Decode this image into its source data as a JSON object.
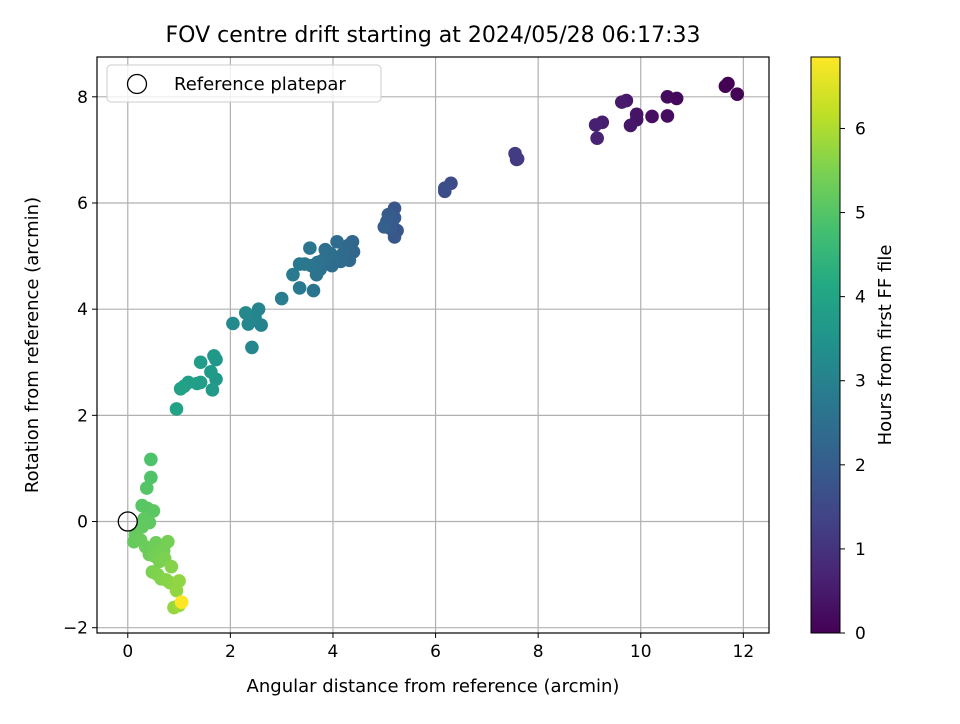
{
  "chart_data": {
    "type": "scatter",
    "title": "FOV centre drift starting at 2024/05/28 06:17:33",
    "xlabel": "Angular distance from reference (arcmin)",
    "ylabel": "Rotation from reference (arcmin)",
    "xlim": [
      -0.6,
      12.5
    ],
    "ylim": [
      -2.1,
      8.75
    ],
    "xticks": [
      0,
      2,
      4,
      6,
      8,
      10,
      12
    ],
    "yticks": [
      -2,
      0,
      2,
      4,
      6,
      8
    ],
    "grid": true,
    "legend": {
      "position": "top-left",
      "entries": [
        "Reference platepar"
      ]
    },
    "reference_point": {
      "x": 0,
      "y": 0
    },
    "colorbar": {
      "label": "Hours from first FF file",
      "colormap": "viridis",
      "range": [
        0,
        6.85
      ],
      "ticks": [
        0,
        1,
        2,
        3,
        4,
        5,
        6
      ]
    },
    "points": [
      {
        "x": 11.7,
        "y": 8.25,
        "c": 0.0
      },
      {
        "x": 11.65,
        "y": 8.2,
        "c": 0.02
      },
      {
        "x": 11.88,
        "y": 8.05,
        "c": 0.05
      },
      {
        "x": 10.7,
        "y": 7.97,
        "c": 0.15
      },
      {
        "x": 10.52,
        "y": 8.0,
        "c": 0.18
      },
      {
        "x": 10.52,
        "y": 7.64,
        "c": 0.22
      },
      {
        "x": 10.22,
        "y": 7.63,
        "c": 0.28
      },
      {
        "x": 9.92,
        "y": 7.67,
        "c": 0.35
      },
      {
        "x": 9.92,
        "y": 7.57,
        "c": 0.38
      },
      {
        "x": 9.8,
        "y": 7.46,
        "c": 0.42
      },
      {
        "x": 9.72,
        "y": 7.93,
        "c": 0.45
      },
      {
        "x": 9.63,
        "y": 7.9,
        "c": 0.48
      },
      {
        "x": 9.25,
        "y": 7.52,
        "c": 0.55
      },
      {
        "x": 9.12,
        "y": 7.47,
        "c": 0.6
      },
      {
        "x": 9.15,
        "y": 7.22,
        "c": 0.65
      },
      {
        "x": 7.6,
        "y": 6.83,
        "c": 1.15
      },
      {
        "x": 7.58,
        "y": 6.82,
        "c": 1.18
      },
      {
        "x": 7.55,
        "y": 6.93,
        "c": 1.2
      },
      {
        "x": 6.3,
        "y": 6.37,
        "c": 1.55
      },
      {
        "x": 6.18,
        "y": 6.28,
        "c": 1.6
      },
      {
        "x": 6.18,
        "y": 6.22,
        "c": 1.63
      },
      {
        "x": 5.25,
        "y": 5.48,
        "c": 1.8
      },
      {
        "x": 5.2,
        "y": 5.9,
        "c": 1.85
      },
      {
        "x": 5.2,
        "y": 5.36,
        "c": 1.88
      },
      {
        "x": 5.2,
        "y": 5.72,
        "c": 1.9
      },
      {
        "x": 5.15,
        "y": 5.62,
        "c": 1.92
      },
      {
        "x": 5.12,
        "y": 5.52,
        "c": 1.95
      },
      {
        "x": 5.08,
        "y": 5.78,
        "c": 1.98
      },
      {
        "x": 5.05,
        "y": 5.65,
        "c": 2.0
      },
      {
        "x": 5.0,
        "y": 5.55,
        "c": 2.05
      },
      {
        "x": 4.4,
        "y": 5.08,
        "c": 2.25
      },
      {
        "x": 4.38,
        "y": 5.27,
        "c": 2.28
      },
      {
        "x": 4.32,
        "y": 4.92,
        "c": 2.3
      },
      {
        "x": 4.3,
        "y": 5.2,
        "c": 2.32
      },
      {
        "x": 4.2,
        "y": 5.05,
        "c": 2.35
      },
      {
        "x": 4.15,
        "y": 4.9,
        "c": 2.38
      },
      {
        "x": 4.08,
        "y": 5.27,
        "c": 2.4
      },
      {
        "x": 4.05,
        "y": 4.98,
        "c": 2.42
      },
      {
        "x": 3.98,
        "y": 4.82,
        "c": 2.45
      },
      {
        "x": 3.95,
        "y": 5.05,
        "c": 2.48
      },
      {
        "x": 3.85,
        "y": 5.12,
        "c": 2.5
      },
      {
        "x": 3.8,
        "y": 4.92,
        "c": 2.52
      },
      {
        "x": 3.75,
        "y": 4.75,
        "c": 2.55
      },
      {
        "x": 3.7,
        "y": 4.88,
        "c": 2.58
      },
      {
        "x": 3.68,
        "y": 4.65,
        "c": 2.6
      },
      {
        "x": 3.62,
        "y": 4.35,
        "c": 2.62
      },
      {
        "x": 3.58,
        "y": 4.82,
        "c": 2.65
      },
      {
        "x": 3.55,
        "y": 5.15,
        "c": 2.68
      },
      {
        "x": 3.45,
        "y": 4.85,
        "c": 2.7
      },
      {
        "x": 3.35,
        "y": 4.85,
        "c": 2.75
      },
      {
        "x": 3.35,
        "y": 4.4,
        "c": 2.78
      },
      {
        "x": 3.22,
        "y": 4.65,
        "c": 2.8
      },
      {
        "x": 3.0,
        "y": 4.2,
        "c": 2.9
      },
      {
        "x": 2.6,
        "y": 3.7,
        "c": 3.05
      },
      {
        "x": 2.55,
        "y": 4.0,
        "c": 3.08
      },
      {
        "x": 2.48,
        "y": 3.85,
        "c": 3.1
      },
      {
        "x": 2.42,
        "y": 3.28,
        "c": 3.12
      },
      {
        "x": 2.35,
        "y": 3.72,
        "c": 3.15
      },
      {
        "x": 2.3,
        "y": 3.93,
        "c": 3.18
      },
      {
        "x": 2.05,
        "y": 3.73,
        "c": 3.25
      },
      {
        "x": 1.72,
        "y": 3.05,
        "c": 3.6
      },
      {
        "x": 1.72,
        "y": 2.68,
        "c": 3.62
      },
      {
        "x": 1.68,
        "y": 3.12,
        "c": 3.65
      },
      {
        "x": 1.62,
        "y": 2.82,
        "c": 3.68
      },
      {
        "x": 1.65,
        "y": 2.48,
        "c": 3.7
      },
      {
        "x": 1.42,
        "y": 3.0,
        "c": 3.75
      },
      {
        "x": 1.42,
        "y": 2.62,
        "c": 3.78
      },
      {
        "x": 1.35,
        "y": 2.6,
        "c": 3.8
      },
      {
        "x": 1.18,
        "y": 2.62,
        "c": 3.85
      },
      {
        "x": 1.1,
        "y": 2.55,
        "c": 3.88
      },
      {
        "x": 1.03,
        "y": 2.5,
        "c": 3.9
      },
      {
        "x": 0.95,
        "y": 2.12,
        "c": 3.95
      },
      {
        "x": 0.45,
        "y": 1.17,
        "c": 4.9
      },
      {
        "x": 0.45,
        "y": 0.83,
        "c": 4.95
      },
      {
        "x": 0.37,
        "y": 0.63,
        "c": 5.0
      },
      {
        "x": 0.28,
        "y": 0.3,
        "c": 5.05
      },
      {
        "x": 0.38,
        "y": 0.25,
        "c": 5.08
      },
      {
        "x": 0.5,
        "y": 0.2,
        "c": 5.1
      },
      {
        "x": 0.32,
        "y": 0.05,
        "c": 5.12
      },
      {
        "x": 0.42,
        "y": -0.02,
        "c": 5.15
      },
      {
        "x": 0.28,
        "y": -0.1,
        "c": 5.18
      },
      {
        "x": 0.15,
        "y": -0.25,
        "c": 5.2
      },
      {
        "x": 0.12,
        "y": -0.38,
        "c": 5.22
      },
      {
        "x": 0.25,
        "y": -0.35,
        "c": 5.25
      },
      {
        "x": 0.35,
        "y": -0.48,
        "c": 5.28
      },
      {
        "x": 0.42,
        "y": -0.62,
        "c": 5.3
      },
      {
        "x": 0.55,
        "y": -0.4,
        "c": 5.32
      },
      {
        "x": 0.6,
        "y": -0.55,
        "c": 5.35
      },
      {
        "x": 0.52,
        "y": -0.65,
        "c": 5.38
      },
      {
        "x": 0.7,
        "y": -0.55,
        "c": 5.4
      },
      {
        "x": 0.78,
        "y": -0.38,
        "c": 5.42
      },
      {
        "x": 0.62,
        "y": -0.75,
        "c": 5.45
      },
      {
        "x": 0.48,
        "y": -0.95,
        "c": 5.48
      },
      {
        "x": 0.72,
        "y": -0.7,
        "c": 5.5
      },
      {
        "x": 0.58,
        "y": -1.0,
        "c": 5.52
      },
      {
        "x": 0.65,
        "y": -1.08,
        "c": 5.55
      },
      {
        "x": 0.85,
        "y": -0.85,
        "c": 5.58
      },
      {
        "x": 0.75,
        "y": -1.1,
        "c": 5.6
      },
      {
        "x": 0.82,
        "y": -1.15,
        "c": 5.62
      },
      {
        "x": 0.92,
        "y": -1.18,
        "c": 5.65
      },
      {
        "x": 1.0,
        "y": -1.12,
        "c": 5.7
      },
      {
        "x": 0.95,
        "y": -1.3,
        "c": 5.72
      },
      {
        "x": 0.9,
        "y": -1.62,
        "c": 5.78
      },
      {
        "x": 1.0,
        "y": -1.58,
        "c": 5.85
      },
      {
        "x": 1.05,
        "y": -1.52,
        "c": 6.85
      }
    ]
  }
}
